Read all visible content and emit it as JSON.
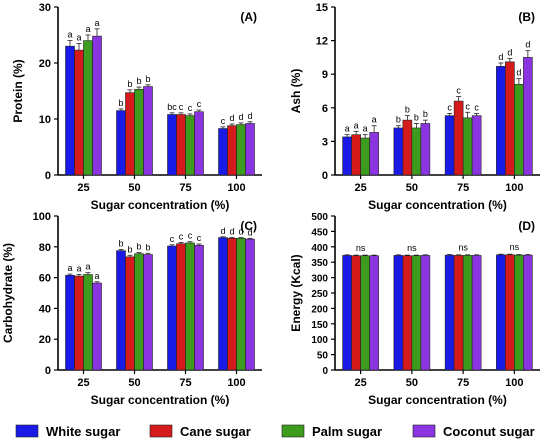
{
  "colors": {
    "white_sugar": "#1a1ae6",
    "cane_sugar": "#d41a1a",
    "palm_sugar": "#3d9b1e",
    "coconut_sugar": "#8a35e0",
    "axis": "#000000"
  },
  "legend": {
    "items": [
      "White sugar",
      "Cane sugar",
      "Palm sugar",
      "Coconut sugar"
    ]
  },
  "chart_data": [
    {
      "panel": "(A)",
      "type": "bar",
      "ylabel": "Protein (%)",
      "xlabel": "Sugar concentration (%)",
      "categories": [
        "25",
        "50",
        "75",
        "100"
      ],
      "ylim": [
        0,
        30
      ],
      "yticks": [
        "0",
        "10",
        "20",
        "30"
      ],
      "series": [
        {
          "name": "White sugar",
          "values": [
            23,
            11.5,
            10.8,
            8.3
          ],
          "errors": [
            1.0,
            0.3,
            0.3,
            0.3
          ],
          "letters": [
            "a",
            "b",
            "bc",
            "c"
          ]
        },
        {
          "name": "Cane sugar",
          "values": [
            22.3,
            14.7,
            10.8,
            8.8
          ],
          "errors": [
            1.2,
            0.5,
            0.3,
            0.3
          ],
          "letters": [
            "a",
            "b",
            "c",
            "d"
          ]
        },
        {
          "name": "Palm sugar",
          "values": [
            24,
            15.3,
            10.6,
            9.0
          ],
          "errors": [
            1.0,
            0.4,
            0.3,
            0.3
          ],
          "letters": [
            "a",
            "b",
            "c",
            "d"
          ]
        },
        {
          "name": "Coconut sugar",
          "values": [
            24.8,
            15.8,
            11.3,
            9.2
          ],
          "errors": [
            1.3,
            0.3,
            0.3,
            0.3
          ],
          "letters": [
            "a",
            "b",
            "c",
            "d"
          ]
        }
      ]
    },
    {
      "panel": "(B)",
      "type": "bar",
      "ylabel": "Ash (%)",
      "xlabel": "Sugar concentration (%)",
      "categories": [
        "25",
        "50",
        "75",
        "100"
      ],
      "ylim": [
        0,
        15
      ],
      "yticks": [
        "0",
        "3",
        "6",
        "9",
        "12",
        "15"
      ],
      "series": [
        {
          "name": "White sugar",
          "values": [
            3.4,
            4.2,
            5.3,
            9.7
          ],
          "errors": [
            0.2,
            0.2,
            0.2,
            0.3
          ],
          "letters": [
            "a",
            "b",
            "c",
            "d"
          ]
        },
        {
          "name": "Cane sugar",
          "values": [
            3.6,
            4.9,
            6.6,
            10.1
          ],
          "errors": [
            0.3,
            0.4,
            0.4,
            0.3
          ],
          "letters": [
            "a",
            "b",
            "c",
            "d"
          ]
        },
        {
          "name": "Palm sugar",
          "values": [
            3.3,
            4.2,
            5.1,
            8.1
          ],
          "errors": [
            0.3,
            0.4,
            0.5,
            0.5
          ],
          "letters": [
            "a",
            "b",
            "c",
            "d"
          ]
        },
        {
          "name": "Coconut sugar",
          "values": [
            3.8,
            4.6,
            5.3,
            10.5
          ],
          "errors": [
            0.6,
            0.3,
            0.2,
            0.6
          ],
          "letters": [
            "a",
            "b",
            "c",
            "d"
          ]
        }
      ]
    },
    {
      "panel": "(C)",
      "type": "bar",
      "ylabel": "Carbohydrate (%)",
      "xlabel": "Sugar concentration (%)",
      "categories": [
        "25",
        "50",
        "75",
        "100"
      ],
      "ylim": [
        0,
        100
      ],
      "yticks": [
        "0",
        "20",
        "40",
        "60",
        "80",
        "100"
      ],
      "series": [
        {
          "name": "White sugar",
          "values": [
            61.5,
            77.5,
            80.5,
            86
          ],
          "errors": [
            0.8,
            0.8,
            0.8,
            0.5
          ],
          "letters": [
            "a",
            "b",
            "c",
            "d"
          ]
        },
        {
          "name": "Cane sugar",
          "values": [
            61,
            73.5,
            82,
            85.5
          ],
          "errors": [
            1.0,
            1.0,
            0.8,
            0.5
          ],
          "letters": [
            "a",
            "b",
            "c",
            "d"
          ]
        },
        {
          "name": "Palm sugar",
          "values": [
            62,
            75.5,
            82.5,
            85.5
          ],
          "errors": [
            1.2,
            0.8,
            0.8,
            0.5
          ],
          "letters": [
            "a",
            "b",
            "c",
            "d"
          ]
        },
        {
          "name": "Coconut sugar",
          "values": [
            56.5,
            75,
            81,
            85
          ],
          "errors": [
            0.8,
            0.8,
            0.8,
            0.5
          ],
          "letters": [
            "a",
            "b",
            "c",
            "d"
          ]
        }
      ]
    },
    {
      "panel": "(D)",
      "type": "bar",
      "ylabel": "Energy (Kcal)",
      "xlabel": "Sugar concentration (%)",
      "categories": [
        "25",
        "50",
        "75",
        "100"
      ],
      "ylim": [
        0,
        500
      ],
      "yticks": [
        "0",
        "50",
        "100",
        "150",
        "200",
        "250",
        "300",
        "350",
        "400",
        "450",
        "500"
      ],
      "group_labels": [
        "ns",
        "ns",
        "ns",
        "ns"
      ],
      "series": [
        {
          "name": "White sugar",
          "values": [
            372,
            372,
            373,
            374
          ],
          "errors": [
            2,
            2,
            2,
            2
          ]
        },
        {
          "name": "Cane sugar",
          "values": [
            371,
            371,
            372,
            374
          ],
          "errors": [
            2,
            2,
            2,
            2
          ]
        },
        {
          "name": "Palm sugar",
          "values": [
            371,
            371,
            372,
            373
          ],
          "errors": [
            2,
            2,
            2,
            2
          ]
        },
        {
          "name": "Coconut sugar",
          "values": [
            371,
            372,
            372,
            373
          ],
          "errors": [
            2,
            2,
            2,
            2
          ]
        }
      ]
    }
  ]
}
